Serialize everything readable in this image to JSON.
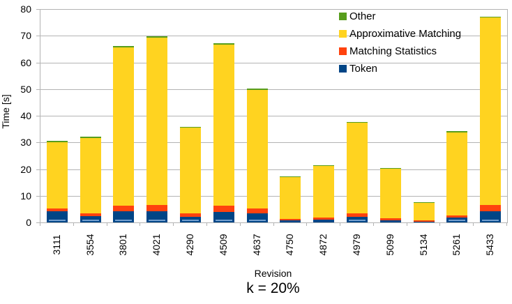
{
  "chart_data": {
    "type": "bar",
    "stacked": true,
    "title": "k = 20%",
    "xlabel": "Revision",
    "ylabel": "Time [s]",
    "categories": [
      "3111",
      "3554",
      "3801",
      "4021",
      "4290",
      "4509",
      "4637",
      "4750",
      "4872",
      "4979",
      "5099",
      "5134",
      "5261",
      "5433"
    ],
    "series": [
      {
        "name": "Token",
        "color": "#004586",
        "values": [
          4.2,
          2.4,
          4.1,
          4.3,
          2.2,
          3.9,
          3.5,
          0.8,
          1.0,
          2.2,
          0.9,
          0.3,
          1.9,
          4.2
        ]
      },
      {
        "name": "Matching Statistics",
        "color": "#FF420E",
        "values": [
          1.0,
          0.9,
          2.2,
          2.3,
          1.1,
          2.3,
          1.7,
          0.6,
          0.9,
          1.2,
          0.7,
          0.5,
          0.8,
          2.4
        ]
      },
      {
        "name": "Approximative Matching",
        "color": "#FFD320",
        "values": [
          24.9,
          28.4,
          59.3,
          62.7,
          32.2,
          60.5,
          44.5,
          15.6,
          19.2,
          33.9,
          18.6,
          6.4,
          31.1,
          70.2
        ]
      },
      {
        "name": "Other",
        "color": "#579D1C",
        "values": [
          0.4,
          0.4,
          0.5,
          0.5,
          0.4,
          0.4,
          0.4,
          0.3,
          0.4,
          0.4,
          0.3,
          0.4,
          0.4,
          0.4
        ]
      }
    ],
    "totals": [
      30.5,
      32.1,
      66.1,
      69.8,
      35.9,
      67.1,
      50.1,
      17.3,
      21.5,
      37.7,
      20.5,
      7.6,
      34.2,
      77.2
    ],
    "ylim": [
      0,
      80
    ],
    "yticks": [
      0,
      10,
      20,
      30,
      40,
      50,
      60,
      70,
      80
    ],
    "grid": true,
    "legend_position": "top-right-inside",
    "legend_order_top_to_bottom": [
      "Other",
      "Approximative Matching",
      "Matching Statistics",
      "Token"
    ],
    "colors": {
      "grid": "#B3B3B3",
      "token_base_highlight": "#729FCF",
      "text": "#000000",
      "background": "#FFFFFF"
    }
  }
}
